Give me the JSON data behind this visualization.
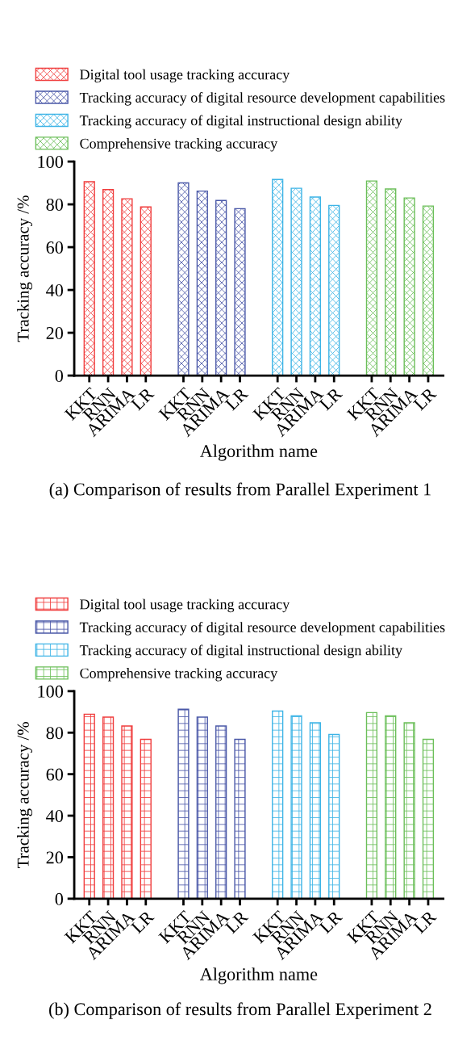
{
  "chart_data": [
    {
      "type": "bar",
      "title": "(a) Comparison of results from Parallel Experiment 1",
      "xlabel": "Algorithm name",
      "ylabel": "Tracking accuracy /%",
      "categories": [
        "KKT",
        "RNN",
        "ARIMA",
        "LR",
        null,
        "KKT",
        "RNN",
        "ARIMA",
        "LR",
        null,
        "KKT",
        "RNN",
        "ARIMA",
        "LR",
        null,
        "KKT",
        "RNN",
        "ARIMA",
        "LR"
      ],
      "series": [
        {
          "name": "Digital tool usage tracking accuracy",
          "color": "#f03c3c",
          "values": [
            90.6,
            86.9,
            82.6,
            78.8,
            null,
            null,
            null,
            null,
            null,
            null,
            null,
            null,
            null,
            null,
            null,
            null,
            null,
            null,
            null
          ]
        },
        {
          "name": "Tracking accuracy of digital resource development capabilities",
          "color": "#4a58a8",
          "values": [
            null,
            null,
            null,
            null,
            null,
            90.0,
            86.2,
            81.8,
            78.0,
            null,
            null,
            null,
            null,
            null,
            null,
            null,
            null,
            null,
            null
          ]
        },
        {
          "name": "Tracking accuracy of digital instructional design ability",
          "color": "#3db4e6",
          "values": [
            null,
            null,
            null,
            null,
            null,
            null,
            null,
            null,
            null,
            null,
            91.6,
            87.5,
            83.4,
            79.5,
            null,
            null,
            null,
            null,
            null
          ]
        },
        {
          "name": "Comprehensive tracking accuracy",
          "color": "#6cbf5a",
          "values": [
            null,
            null,
            null,
            null,
            null,
            null,
            null,
            null,
            null,
            null,
            null,
            null,
            null,
            null,
            null,
            90.9,
            87.2,
            83.0,
            79.2
          ]
        }
      ],
      "ylim": [
        0,
        100
      ],
      "yticks": [
        0,
        20,
        40,
        60,
        80,
        100
      ],
      "grid": false,
      "legend": "top"
    },
    {
      "type": "bar",
      "title": "(b) Comparison of results from Parallel Experiment 2",
      "xlabel": "Algorithm name",
      "ylabel": "Tracking accuracy /%",
      "categories": [
        "KKT",
        "RNN",
        "ARIMA",
        "LR",
        null,
        "KKT",
        "RNN",
        "ARIMA",
        "LR",
        null,
        "KKT",
        "RNN",
        "ARIMA",
        "LR",
        null,
        "KKT",
        "RNN",
        "ARIMA",
        "LR"
      ],
      "series": [
        {
          "name": "Digital tool usage tracking accuracy",
          "color": "#f03c3c",
          "values": [
            88.9,
            87.5,
            83.2,
            76.8,
            null,
            null,
            null,
            null,
            null,
            null,
            null,
            null,
            null,
            null,
            null,
            null,
            null,
            null,
            null
          ]
        },
        {
          "name": "Tracking accuracy of digital resource development capabilities",
          "color": "#4a58a8",
          "values": [
            null,
            null,
            null,
            null,
            null,
            91.3,
            87.5,
            83.2,
            76.8,
            null,
            null,
            null,
            null,
            null,
            null,
            null,
            null,
            null,
            null
          ]
        },
        {
          "name": "Tracking accuracy of digital instructional design ability",
          "color": "#3db4e6",
          "values": [
            null,
            null,
            null,
            null,
            null,
            null,
            null,
            null,
            null,
            null,
            90.4,
            88.1,
            84.8,
            79.1,
            null,
            null,
            null,
            null,
            null
          ]
        },
        {
          "name": "Comprehensive tracking accuracy",
          "color": "#6cbf5a",
          "values": [
            null,
            null,
            null,
            null,
            null,
            null,
            null,
            null,
            null,
            null,
            null,
            null,
            null,
            null,
            null,
            89.7,
            88.1,
            84.8,
            76.8
          ]
        }
      ],
      "ylim": [
        0,
        100
      ],
      "yticks": [
        0,
        20,
        40,
        60,
        80,
        100
      ],
      "grid": false,
      "legend": "top"
    }
  ]
}
